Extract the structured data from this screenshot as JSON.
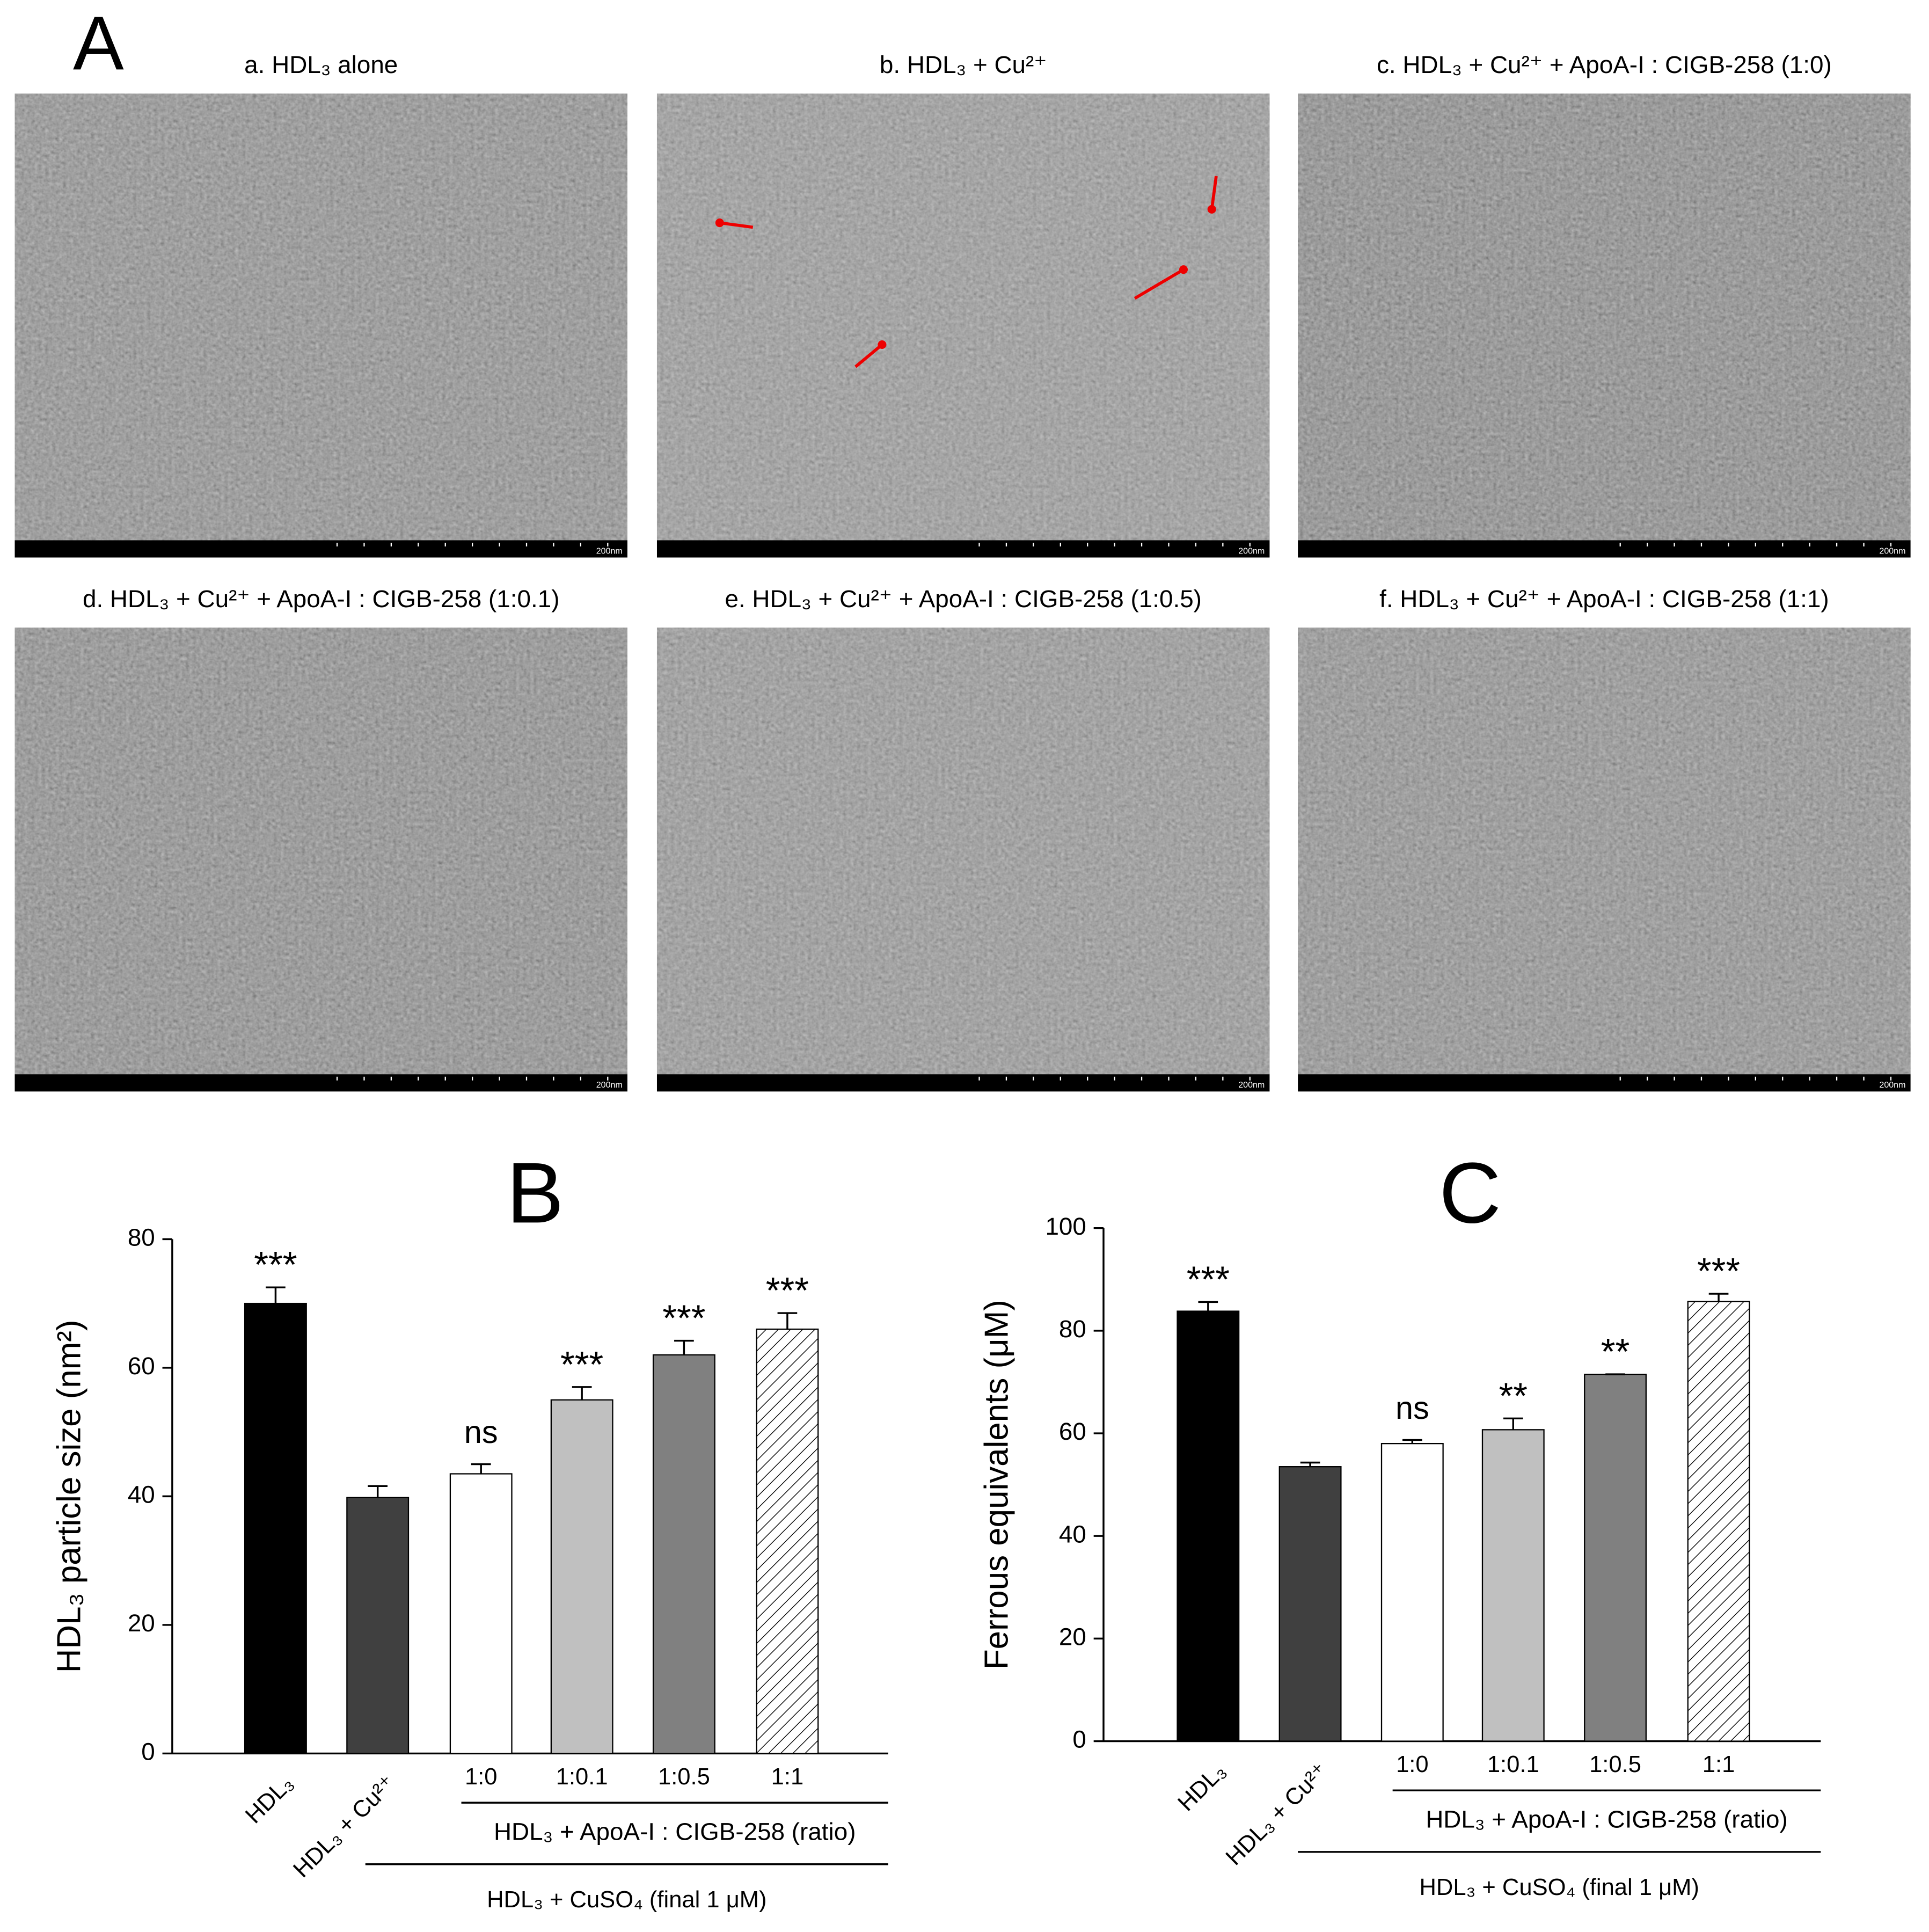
{
  "images": {
    "label": "A",
    "panels": [
      {
        "title": "a. HDL₃ alone",
        "scale": "200nm"
      },
      {
        "title": "b. HDL₃ + Cu²⁺",
        "scale": "200nm"
      },
      {
        "title": "c. HDL₃ + Cu²⁺ + ApoA-I : CIGB-258 (1:0)",
        "scale": "200nm"
      },
      {
        "title": "d. HDL₃ + Cu²⁺ + ApoA-I : CIGB-258 (1:0.1)",
        "scale": "200nm"
      },
      {
        "title": "e. HDL₃ + Cu²⁺ + ApoA-I : CIGB-258 (1:0.5)",
        "scale": "200nm"
      },
      {
        "title": "f. HDL₃ + Cu²⁺ + ApoA-I : CIGB-258 (1:1)",
        "scale": "200nm"
      }
    ]
  },
  "chart_data": [
    {
      "type": "bar",
      "title": "B",
      "y_label": "HDL₃ particle size (nm²)",
      "categories": [
        "HDL₃",
        "HDL₃ + Cu²⁺",
        "1:0",
        "1:0.1",
        "1:0.5",
        "1:1"
      ],
      "values": [
        70,
        39.8,
        43.5,
        55,
        62,
        66
      ],
      "errors": [
        2.5,
        1.8,
        1.5,
        2,
        2.2,
        2.5
      ],
      "significance": [
        "***",
        null,
        "ns",
        "***",
        "***",
        "***"
      ],
      "colors": [
        "#000000",
        "#404040",
        "#ffffff",
        "#c0c0c0",
        "#808080",
        "#ffffff"
      ],
      "hatched": [
        false,
        false,
        false,
        false,
        false,
        true
      ],
      "group_labels": [
        "HDL₃ + ApoA-I : CIGB-258 (ratio)",
        "HDL₃ + CuSO₄ (final 1 μM)"
      ],
      "ylim": [
        0,
        80
      ],
      "yticks": [
        0,
        20,
        40,
        60,
        80
      ]
    },
    {
      "type": "bar",
      "title": "C",
      "y_label": "Ferrous equivalents (μM)",
      "categories": [
        "HDL₃",
        "HDL₃ + Cu²⁺",
        "1:0",
        "1:0.1",
        "1:0.5",
        "1:1"
      ],
      "values": [
        83.8,
        53.5,
        58,
        60.7,
        71.5,
        85.7
      ],
      "errors": [
        1.8,
        0.8,
        0.7,
        2.2,
        0,
        1.5
      ],
      "significance": [
        "***",
        null,
        "ns",
        "**",
        "**",
        "***"
      ],
      "colors": [
        "#000000",
        "#404040",
        "#ffffff",
        "#c0c0c0",
        "#808080",
        "#ffffff"
      ],
      "hatched": [
        false,
        false,
        false,
        false,
        false,
        true
      ],
      "group_labels": [
        "HDL₃ + ApoA-I : CIGB-258 (ratio)",
        "HDL₃ + CuSO₄ (final 1 μM)"
      ],
      "ylim": [
        0,
        100
      ],
      "yticks": [
        0,
        20,
        40,
        60,
        80,
        100
      ]
    }
  ]
}
